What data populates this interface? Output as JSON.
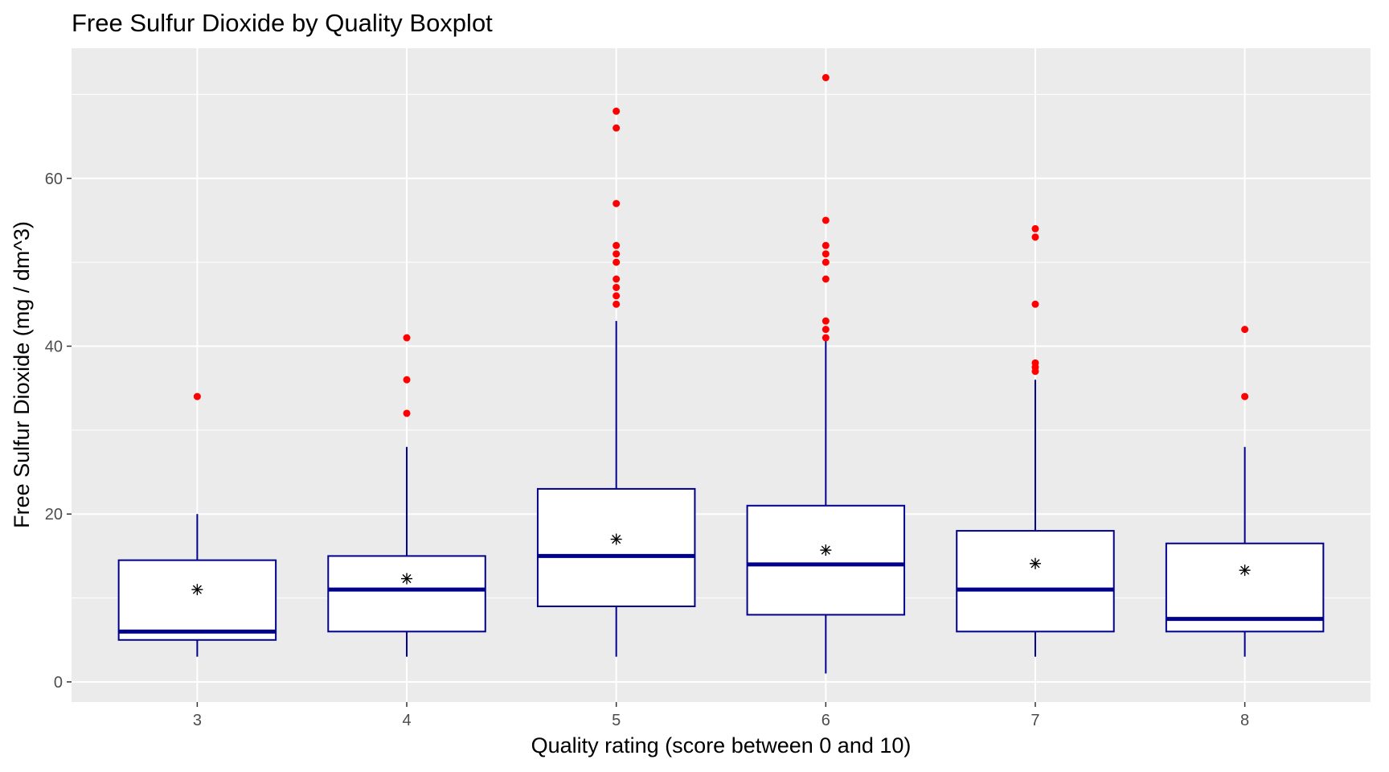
{
  "chart_data": {
    "type": "boxplot",
    "title": "Free Sulfur Dioxide by Quality Boxplot",
    "xlabel": "Quality rating (score between 0 and 10)",
    "ylabel": "Free Sulfur Dioxide (mg / dm^3)",
    "categories": [
      "3",
      "4",
      "5",
      "6",
      "7",
      "8"
    ],
    "ylim": [
      -2.4,
      75.5
    ],
    "yticks": [
      0,
      20,
      40,
      60
    ],
    "ytick_labels": [
      "0",
      "20",
      "40",
      "60"
    ],
    "grid": true,
    "legend": "none",
    "colors": {
      "panel": "#ebebeb",
      "grid": "#ffffff",
      "box_outline": "#00008b",
      "median": "#00008b",
      "box_fill": "#ffffff",
      "outlier": "#ff0000",
      "mean_marker": "#000000"
    },
    "boxes": [
      {
        "category": "3",
        "whisker_low": 3,
        "q1": 5,
        "median": 6,
        "q3": 14.5,
        "whisker_high": 20,
        "mean": 11,
        "outliers": [
          34
        ]
      },
      {
        "category": "4",
        "whisker_low": 3,
        "q1": 6,
        "median": 11,
        "q3": 15,
        "whisker_high": 28,
        "mean": 12.3,
        "outliers": [
          32,
          36,
          41
        ]
      },
      {
        "category": "5",
        "whisker_low": 3,
        "q1": 9,
        "median": 15,
        "q3": 23,
        "whisker_high": 43,
        "mean": 17,
        "outliers": [
          45,
          46,
          47,
          48,
          50,
          51,
          52,
          57,
          66,
          68
        ]
      },
      {
        "category": "6",
        "whisker_low": 1,
        "q1": 8,
        "median": 14,
        "q3": 21,
        "whisker_high": 41,
        "mean": 15.7,
        "outliers": [
          41,
          42,
          43,
          48,
          50,
          51,
          52,
          55,
          72
        ]
      },
      {
        "category": "7",
        "whisker_low": 3,
        "q1": 6,
        "median": 11,
        "q3": 18,
        "whisker_high": 36,
        "mean": 14.1,
        "outliers": [
          37,
          37.5,
          38,
          45,
          53,
          54
        ]
      },
      {
        "category": "8",
        "whisker_low": 3,
        "q1": 6,
        "median": 7.5,
        "q3": 16.5,
        "whisker_high": 28,
        "mean": 13.3,
        "outliers": [
          34,
          42
        ]
      }
    ]
  }
}
